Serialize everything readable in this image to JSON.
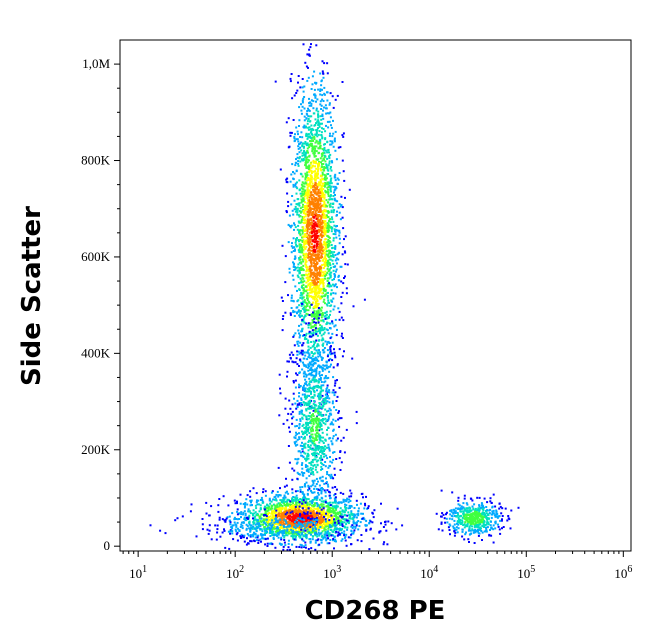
{
  "chart_data": {
    "type": "scatter",
    "title": "",
    "xlabel": "CD268 PE",
    "ylabel": "Side Scatter",
    "x_scale": "log",
    "x_range": [
      6.5,
      1200000
    ],
    "y_range": [
      -10000,
      1050000
    ],
    "x_ticks": [
      {
        "value": 10,
        "base": "10",
        "exp": "1"
      },
      {
        "value": 100,
        "base": "10",
        "exp": "2"
      },
      {
        "value": 1000,
        "base": "10",
        "exp": "3"
      },
      {
        "value": 10000,
        "base": "10",
        "exp": "4"
      },
      {
        "value": 100000,
        "base": "10",
        "exp": "5"
      },
      {
        "value": 1000000,
        "base": "10",
        "exp": "6"
      }
    ],
    "y_ticks": [
      {
        "value": 0,
        "label": "0"
      },
      {
        "value": 200000,
        "label": "200K"
      },
      {
        "value": 400000,
        "label": "400K"
      },
      {
        "value": 600000,
        "label": "600K"
      },
      {
        "value": 800000,
        "label": "800K"
      },
      {
        "value": 1000000,
        "label": "1,0M"
      }
    ],
    "color_scale": [
      "#0000ff",
      "#00aaff",
      "#00e0c0",
      "#40ff40",
      "#ffff00",
      "#ff8000",
      "#ff0000"
    ],
    "grid": false,
    "legend": "none",
    "populations": [
      {
        "name": "",
        "x_center": 450,
        "y_center": 60000,
        "x_spread_decades": 0.32,
        "y_spread": 25000,
        "points": 1800,
        "peak_density": 1.0
      },
      {
        "name": "",
        "x_center": 650,
        "y_center": 650000,
        "x_spread_decades": 0.12,
        "y_spread": 150000,
        "points": 2600,
        "peak_density": 0.95
      },
      {
        "name": "",
        "x_center": 650,
        "y_center": 250000,
        "x_spread_decades": 0.12,
        "y_spread": 90000,
        "points": 900,
        "peak_density": 0.45
      },
      {
        "name": "",
        "x_center": 28000,
        "y_center": 60000,
        "x_spread_decades": 0.14,
        "y_spread": 18000,
        "points": 500,
        "peak_density": 0.55
      },
      {
        "name": "",
        "x_center": 300,
        "y_center": 40000,
        "x_spread_decades": 0.45,
        "y_spread": 15000,
        "points": 300,
        "peak_density": 0.2
      }
    ]
  }
}
